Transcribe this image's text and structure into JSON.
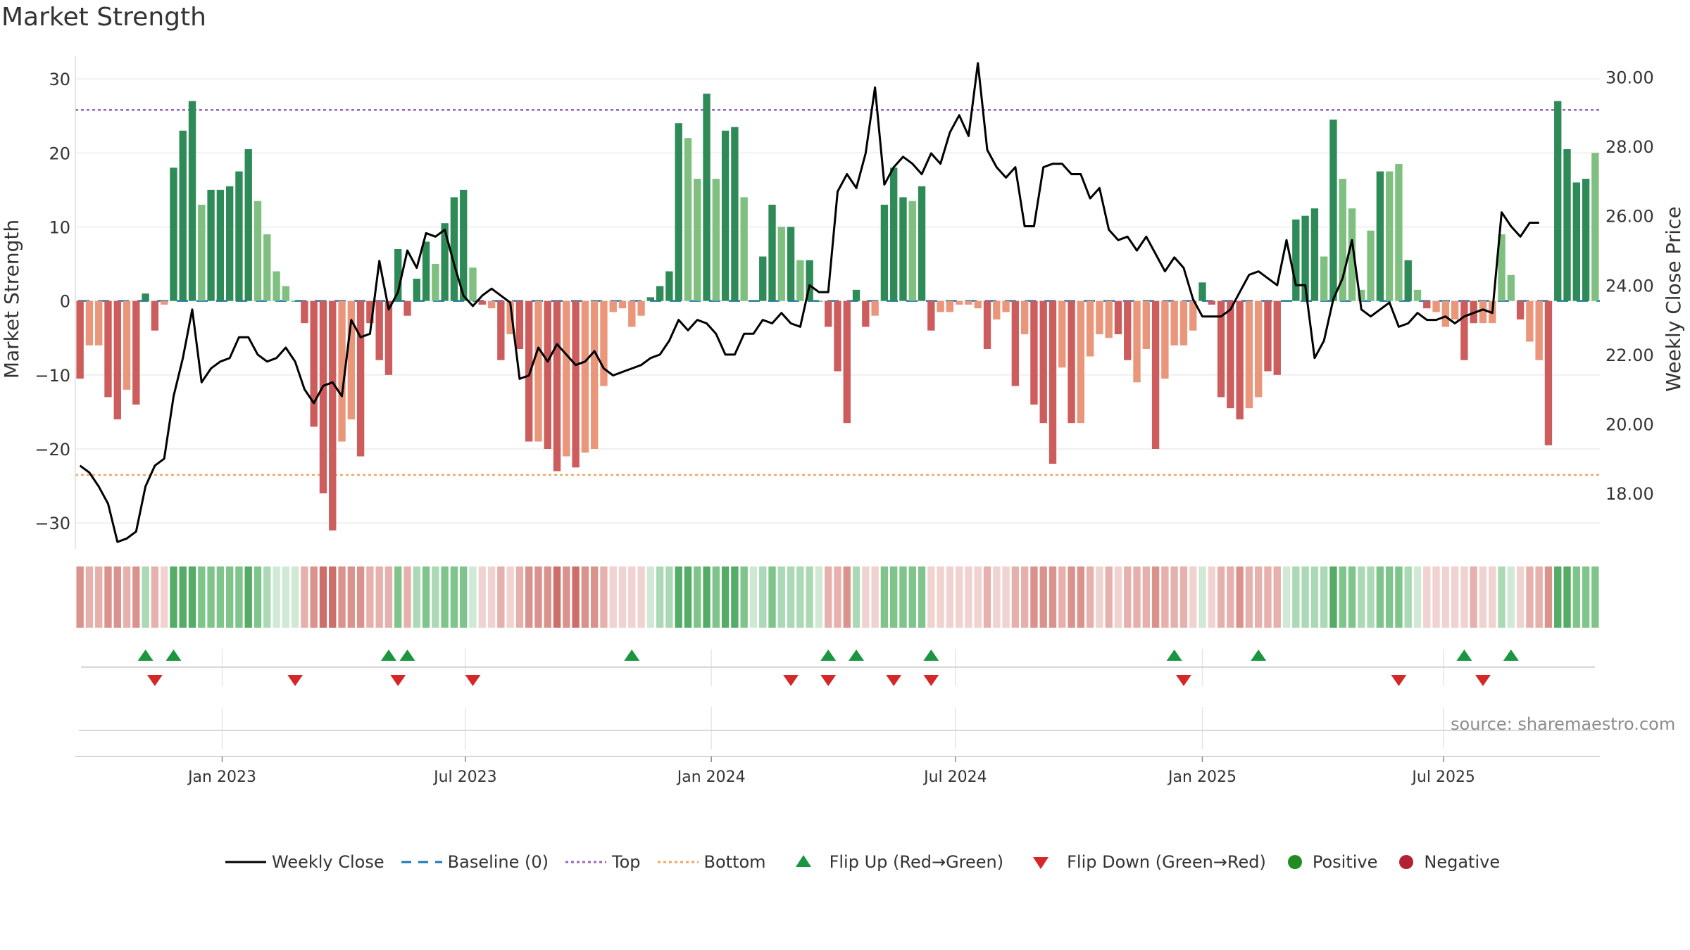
{
  "title": "Market Strength",
  "source_note": "source: sharemaestro.com",
  "colors": {
    "dark_green": "#2e8b57",
    "light_green": "#7fbf7f",
    "dark_red": "#cd5c5c",
    "light_red": "#e9967a",
    "close_line": "#000000",
    "baseline": "#1f77b4",
    "top": "#9467bd",
    "bottom": "#f4a460",
    "flip_up": "#1a9641",
    "flip_down": "#d62728"
  },
  "legend": [
    {
      "key": "close",
      "label": "Weekly Close"
    },
    {
      "key": "baseline",
      "label": "Baseline (0)"
    },
    {
      "key": "top",
      "label": "Top"
    },
    {
      "key": "bottom",
      "label": "Bottom"
    },
    {
      "key": "flip_up",
      "label": "Flip Up (Red→Green)"
    },
    {
      "key": "flip_down",
      "label": "Flip Down (Green→Red)"
    },
    {
      "key": "positive",
      "label": "Positive"
    },
    {
      "key": "negative",
      "label": "Negative"
    }
  ],
  "chart_data": {
    "type": "bar",
    "ylabel": "Market Strength",
    "ylabel_right": "Weekly Close Price",
    "ylim": [
      -33.5,
      34
    ],
    "ylim_right": [
      16.4,
      30.8
    ],
    "yticks": [
      -30,
      -20,
      -10,
      0,
      10,
      20,
      30
    ],
    "yticks_right": [
      "18.00",
      "20.00",
      "22.00",
      "24.00",
      "26.00",
      "28.00",
      "30.00"
    ],
    "xticks": [
      {
        "label": "Jan 2023",
        "index": 15.2
      },
      {
        "label": "Jul 2023",
        "index": 41.2
      },
      {
        "label": "Jan 2024",
        "index": 67.5
      },
      {
        "label": "Jul 2024",
        "index": 93.6
      },
      {
        "label": "Jan 2025",
        "index": 120
      },
      {
        "label": "Jul 2025",
        "index": 145.8
      }
    ],
    "top_line": 25.8,
    "bottom_line": -23.5,
    "baseline": 0,
    "strength": [
      -10.5,
      -6,
      -6,
      -13,
      -16,
      -12,
      -14,
      1,
      -4,
      -0.5,
      18,
      23,
      27,
      13,
      15,
      15,
      15.5,
      17.5,
      20.5,
      13.5,
      9,
      4,
      2,
      0,
      -3,
      -17,
      -26,
      -31,
      -19,
      -16,
      -21,
      -3,
      -8,
      -10,
      7,
      -2,
      3,
      8,
      5,
      10.5,
      14,
      15,
      4.5,
      -0.5,
      -1,
      -8,
      -4.5,
      -6.5,
      -19,
      -19,
      -20,
      -23,
      -21,
      -22.5,
      -20.5,
      -20,
      -11.5,
      -1.5,
      -1,
      -3.5,
      -2,
      0.5,
      2,
      4,
      24,
      22,
      16.5,
      28,
      16.5,
      23,
      23.5,
      14,
      0,
      6,
      13,
      10,
      10,
      5.5,
      5.5,
      0,
      -3.5,
      -9.5,
      -16.5,
      1.5,
      -3.5,
      -2,
      13,
      18,
      14,
      13.5,
      15.5,
      -4,
      -1.5,
      -1.5,
      -0.5,
      -0.5,
      -1,
      -6.5,
      -2.5,
      -1.5,
      -11.5,
      -4.5,
      -14,
      -16.5,
      -22,
      -9,
      -16.5,
      -16.5,
      -7.5,
      -4.5,
      -5,
      -4.5,
      -8,
      -11,
      -6.5,
      -20,
      -10.5,
      -6,
      -6,
      -4,
      2.5,
      -0.5,
      -13,
      -14.5,
      -16,
      -14.5,
      -13,
      -9.5,
      -10,
      0,
      11,
      11.5,
      12.5,
      6,
      24.5,
      16.5,
      12.5,
      1.5,
      9.5,
      17.5,
      17.5,
      18.5,
      5.5,
      1.5,
      -1,
      -1.5,
      -3.5,
      -2.5,
      -8,
      -3,
      -3,
      -3,
      9,
      3.5,
      -2.5,
      -5.5,
      -8,
      -19.5,
      27,
      20.5,
      16,
      16.5,
      20
    ],
    "bar_shade": [
      "D",
      "L",
      "L",
      "D",
      "D",
      "L",
      "D",
      "D",
      "D",
      "L",
      "D",
      "D",
      "D",
      "L",
      "D",
      "D",
      "D",
      "D",
      "D",
      "L",
      "L",
      "L",
      "L",
      "D",
      "D",
      "D",
      "D",
      "D",
      "L",
      "L",
      "D",
      "D",
      "D",
      "D",
      "D",
      "D",
      "D",
      "D",
      "L",
      "D",
      "D",
      "D",
      "L",
      "D",
      "L",
      "D",
      "L",
      "D",
      "D",
      "L",
      "D",
      "D",
      "L",
      "D",
      "L",
      "L",
      "L",
      "L",
      "L",
      "L",
      "L",
      "D",
      "D",
      "D",
      "D",
      "L",
      "L",
      "D",
      "L",
      "D",
      "D",
      "L",
      "D",
      "D",
      "D",
      "L",
      "D",
      "L",
      "D",
      "D",
      "D",
      "D",
      "D",
      "D",
      "D",
      "L",
      "D",
      "D",
      "D",
      "L",
      "D",
      "D",
      "L",
      "L",
      "L",
      "L",
      "L",
      "D",
      "L",
      "L",
      "D",
      "L",
      "D",
      "D",
      "D",
      "L",
      "D",
      "L",
      "L",
      "L",
      "L",
      "D",
      "D",
      "L",
      "L",
      "D",
      "L",
      "L",
      "L",
      "L",
      "D",
      "D",
      "D",
      "D",
      "D",
      "L",
      "L",
      "D",
      "D",
      "D",
      "D",
      "D",
      "D",
      "L",
      "D",
      "L",
      "L",
      "L",
      "L",
      "D",
      "L",
      "L",
      "D",
      "L",
      "D",
      "L",
      "L",
      "L",
      "D",
      "D",
      "L",
      "L",
      "L",
      "L",
      "D",
      "L",
      "L",
      "D",
      "D",
      "D",
      "D",
      "D",
      "L",
      "L",
      "L",
      "D"
    ],
    "close": [
      18.8,
      18.6,
      18.2,
      17.7,
      16.6,
      16.7,
      16.9,
      18.2,
      18.8,
      19.0,
      20.8,
      21.9,
      23.3,
      21.2,
      21.6,
      21.8,
      21.9,
      22.5,
      22.5,
      22.0,
      21.8,
      21.9,
      22.2,
      21.8,
      21.0,
      20.6,
      21.1,
      21.2,
      20.8,
      23.0,
      22.5,
      22.6,
      24.7,
      23.3,
      23.8,
      25.0,
      24.5,
      25.5,
      25.4,
      25.6,
      24.6,
      23.7,
      23.4,
      23.7,
      23.9,
      23.7,
      23.5,
      21.3,
      21.4,
      22.2,
      21.8,
      22.3,
      22.0,
      21.7,
      21.8,
      22.1,
      21.6,
      21.4,
      21.5,
      21.6,
      21.7,
      21.9,
      22.0,
      22.4,
      23.0,
      22.7,
      23.0,
      22.9,
      22.6,
      22.0,
      22.0,
      22.6,
      22.6,
      23.0,
      22.9,
      23.2,
      22.9,
      22.8,
      24.0,
      23.8,
      23.8,
      26.7,
      27.2,
      26.8,
      27.8,
      29.7,
      26.9,
      27.4,
      27.7,
      27.5,
      27.2,
      27.8,
      27.5,
      28.4,
      28.9,
      28.3,
      30.4,
      27.9,
      27.4,
      27.1,
      27.4,
      25.7,
      25.7,
      27.4,
      27.5,
      27.5,
      27.2,
      27.2,
      26.5,
      26.8,
      25.6,
      25.3,
      25.4,
      25.0,
      25.4,
      24.9,
      24.4,
      24.8,
      24.5,
      23.6,
      23.1,
      23.1,
      23.1,
      23.3,
      23.8,
      24.3,
      24.4,
      24.2,
      24.0,
      25.3,
      24.0,
      24.0,
      21.9,
      22.4,
      23.6,
      24.2,
      25.3,
      23.3,
      23.1,
      23.3,
      23.5,
      22.8,
      22.9,
      23.2,
      23.0,
      23.0,
      23.1,
      22.9,
      23.1,
      23.2,
      23.3,
      23.2,
      26.1,
      25.7,
      25.4,
      25.8,
      25.8
    ],
    "flip_up_indices": [
      7,
      10,
      33,
      35,
      59,
      80,
      83,
      91,
      117,
      126,
      148,
      153
    ],
    "flip_down_indices": [
      8,
      23,
      34,
      42,
      76,
      80,
      87,
      91,
      118,
      141,
      150
    ],
    "heat_intensity": [
      3,
      2,
      2,
      3,
      3,
      2,
      3,
      2,
      2,
      1,
      4,
      4,
      4,
      3,
      3,
      3,
      3,
      3,
      4,
      3,
      2,
      1,
      1,
      1,
      2,
      3,
      4,
      4,
      3,
      3,
      3,
      2,
      2,
      2,
      3,
      2,
      2,
      3,
      2,
      3,
      3,
      3,
      1,
      1,
      1,
      2,
      1,
      2,
      3,
      3,
      3,
      4,
      3,
      4,
      3,
      3,
      2,
      1,
      1,
      1,
      1,
      1,
      2,
      2,
      4,
      4,
      3,
      4,
      3,
      4,
      4,
      3,
      1,
      2,
      3,
      2,
      2,
      2,
      2,
      1,
      2,
      2,
      3,
      2,
      1,
      1,
      3,
      3,
      3,
      3,
      3,
      1,
      1,
      1,
      1,
      1,
      1,
      2,
      1,
      1,
      2,
      2,
      3,
      3,
      3,
      2,
      3,
      3,
      2,
      1,
      2,
      1,
      2,
      2,
      2,
      3,
      2,
      2,
      2,
      1,
      1,
      1,
      2,
      2,
      3,
      2,
      2,
      2,
      2,
      1,
      2,
      2,
      2,
      2,
      4,
      3,
      3,
      2,
      2,
      3,
      3,
      3,
      2,
      1,
      1,
      1,
      1,
      1,
      1,
      2,
      1,
      1,
      2,
      1,
      1,
      2,
      2,
      3,
      4,
      4,
      3,
      3,
      3
    ]
  }
}
